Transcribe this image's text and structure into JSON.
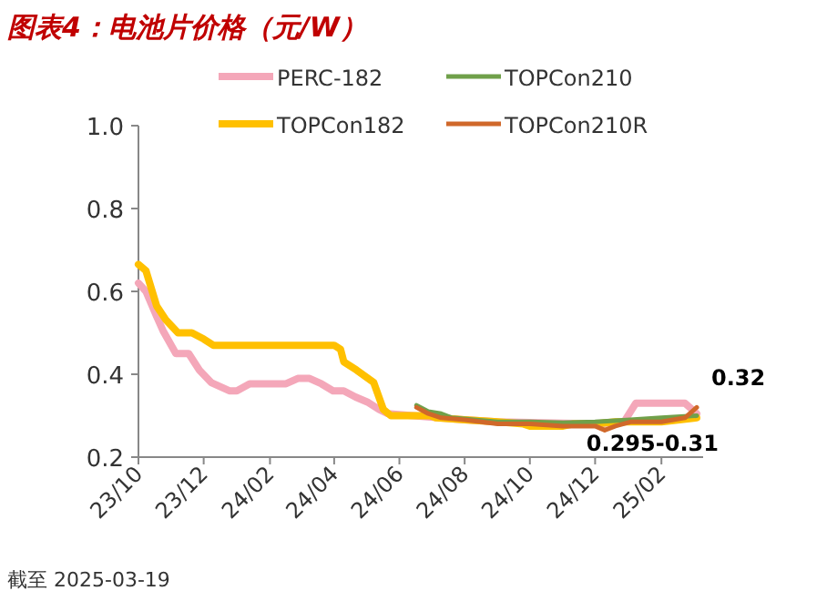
{
  "chart_data": {
    "type": "line",
    "title": "图表4：电池片价格（元/W）",
    "xlim": [
      "2023-10-01",
      "2025-03-12"
    ],
    "xticks": [
      {
        "value": "2023-10-01",
        "label": "23/10"
      },
      {
        "value": "2023-12-01",
        "label": "23/12"
      },
      {
        "value": "2024-02-01",
        "label": "24/02"
      },
      {
        "value": "2024-04-01",
        "label": "24/04"
      },
      {
        "value": "2024-06-01",
        "label": "24/06"
      },
      {
        "value": "2024-08-01",
        "label": "24/08"
      },
      {
        "value": "2024-10-01",
        "label": "24/10"
      },
      {
        "value": "2024-12-01",
        "label": "24/12"
      },
      {
        "value": "2025-02-01",
        "label": "25/02"
      }
    ],
    "ylim": [
      0.2,
      1.0
    ],
    "yticks": [
      {
        "value": 0.2,
        "label": "0.2"
      },
      {
        "value": 0.4,
        "label": "0.4"
      },
      {
        "value": 0.6,
        "label": "0.6"
      },
      {
        "value": 0.8,
        "label": "0.8"
      },
      {
        "value": 1.0,
        "label": "1.0"
      }
    ],
    "grid": false,
    "legend": "top",
    "marker": "none",
    "line_style": "solid",
    "series": [
      {
        "name": "PERC-182",
        "color": "#f4a7b9",
        "x": [
          "2023-10-01",
          "2023-10-08",
          "2023-10-18",
          "2023-10-24",
          "2023-11-05",
          "2023-11-17",
          "2023-11-27",
          "2023-12-08",
          "2023-12-25",
          "2024-01-01",
          "2024-01-13",
          "2024-02-16",
          "2024-02-27",
          "2024-03-09",
          "2024-03-20",
          "2024-03-31",
          "2024-04-10",
          "2024-04-21",
          "2024-05-02",
          "2024-05-13",
          "2024-05-21",
          "2024-07-01",
          "2024-08-01",
          "2024-09-01",
          "2024-10-01",
          "2024-12-01",
          "2024-12-28",
          "2025-01-08",
          "2025-02-23",
          "2025-03-06"
        ],
        "values": [
          0.62,
          0.6,
          0.54,
          0.505,
          0.45,
          0.45,
          0.41,
          0.38,
          0.36,
          0.36,
          0.377,
          0.377,
          0.39,
          0.39,
          0.377,
          0.36,
          0.36,
          0.345,
          0.333,
          0.315,
          0.305,
          null,
          0.29,
          0.285,
          null,
          0.28,
          0.285,
          0.33,
          0.33,
          0.305
        ]
      },
      {
        "name": "TOPCon210",
        "color": "#70a04a",
        "x": [
          "2024-06-17",
          "2024-06-28",
          "2024-07-10",
          "2024-07-20",
          "2024-08-10",
          "2024-09-01",
          "2024-10-01",
          "2024-11-01",
          "2024-12-01",
          "2025-01-03",
          "2025-02-01",
          "2025-03-06"
        ],
        "values": [
          0.325,
          0.31,
          0.305,
          0.295,
          0.29,
          0.285,
          0.285,
          0.283,
          0.285,
          0.29,
          0.295,
          0.3
        ]
      },
      {
        "name": "TOPCon182",
        "color": "#ffc000",
        "x": [
          "2023-10-01",
          "2023-10-08",
          "2023-10-18",
          "2023-10-27",
          "2023-11-07",
          "2023-11-20",
          "2023-12-01",
          "2023-12-10",
          "2024-04-01",
          "2024-04-07",
          "2024-04-10",
          "2024-04-22",
          "2024-05-08",
          "2024-05-17",
          "2024-05-24",
          "2024-06-30",
          "2024-07-05",
          "2024-08-01",
          "2024-09-01",
          "2024-09-25",
          "2024-10-01",
          "2024-11-01",
          "2024-11-10",
          "2024-12-01",
          "2024-12-20",
          "2025-01-03",
          "2025-02-01",
          "2025-03-06"
        ],
        "values": [
          0.665,
          0.65,
          0.565,
          0.53,
          0.5,
          0.5,
          0.485,
          0.47,
          0.47,
          0.46,
          0.43,
          0.41,
          0.38,
          0.315,
          0.3,
          0.3,
          0.295,
          0.29,
          0.285,
          0.28,
          0.275,
          0.275,
          0.28,
          0.28,
          0.285,
          0.285,
          0.285,
          0.295
        ]
      },
      {
        "name": "TOPCon210R",
        "color": "#d0682a",
        "x": [
          "2024-06-17",
          "2024-06-28",
          "2024-07-10",
          "2024-08-01",
          "2024-09-01",
          "2024-10-01",
          "2024-11-01",
          "2024-12-01",
          "2024-12-10",
          "2024-12-20",
          "2025-01-03",
          "2025-02-01",
          "2025-02-23",
          "2025-03-06"
        ],
        "values": [
          0.32,
          0.305,
          0.295,
          0.29,
          0.28,
          0.28,
          0.275,
          0.275,
          0.265,
          0.275,
          0.285,
          0.285,
          0.295,
          0.32
        ]
      }
    ],
    "annotations": [
      {
        "text": "0.32",
        "x": "2025-03-06",
        "y": 0.32
      },
      {
        "text": "0.295-0.31",
        "x": "2025-03-06",
        "y": 0.295
      },
      "截至 2025-03-19"
    ]
  }
}
